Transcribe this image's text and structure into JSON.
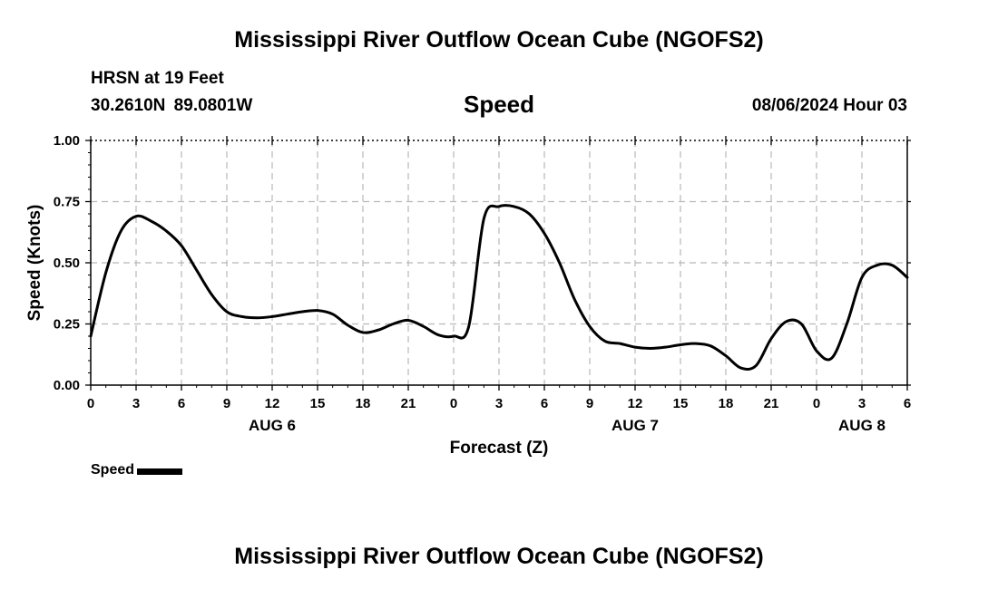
{
  "header": {
    "title": "Mississippi River Outflow Ocean Cube (NGOFS2)",
    "station": "HRSN at 19 Feet",
    "coords": "30.2610N  89.0801W",
    "variable": "Speed",
    "datetime": "08/06/2024 Hour 03"
  },
  "footer": {
    "title": "Mississippi River Outflow Ocean Cube (NGOFS2)"
  },
  "legend": {
    "label": "Speed",
    "color": "#000000"
  },
  "chart_data": {
    "type": "line",
    "title": "Speed",
    "xlabel": "Forecast (Z)",
    "ylabel": "Speed (Knots)",
    "xlim": [
      0,
      54
    ],
    "ylim": [
      0,
      1.0
    ],
    "grid": true,
    "x_ticks": [
      0,
      3,
      6,
      9,
      12,
      15,
      18,
      21,
      24,
      27,
      30,
      33,
      36,
      39,
      42,
      45,
      48,
      51,
      54
    ],
    "x_tick_labels": [
      "0",
      "3",
      "6",
      "9",
      "12",
      "15",
      "18",
      "21",
      "0",
      "3",
      "6",
      "9",
      "12",
      "15",
      "18",
      "21",
      "0",
      "3",
      "6"
    ],
    "y_ticks": [
      0,
      0.25,
      0.5,
      0.75,
      1.0
    ],
    "y_tick_labels": [
      "0.00",
      "0.25",
      "0.50",
      "0.75",
      "1.00"
    ],
    "date_labels": [
      {
        "x": 12,
        "label": "AUG 6"
      },
      {
        "x": 36,
        "label": "AUG 7"
      },
      {
        "x": 51,
        "label": "AUG 8"
      }
    ],
    "series": [
      {
        "name": "Speed",
        "color": "#000000",
        "x": [
          0,
          1,
          2,
          3,
          4,
          5,
          6,
          7,
          8,
          9,
          10,
          11,
          12,
          13,
          14,
          15,
          16,
          17,
          18,
          19,
          20,
          21,
          22,
          23,
          24,
          25,
          26,
          27,
          28,
          29,
          30,
          31,
          32,
          33,
          34,
          35,
          36,
          37,
          38,
          39,
          40,
          41,
          42,
          43,
          44,
          45,
          46,
          47,
          48,
          49,
          50,
          51,
          52,
          53,
          54
        ],
        "values": [
          0.2,
          0.46,
          0.63,
          0.69,
          0.67,
          0.63,
          0.57,
          0.47,
          0.37,
          0.3,
          0.28,
          0.275,
          0.28,
          0.29,
          0.3,
          0.305,
          0.29,
          0.245,
          0.215,
          0.225,
          0.25,
          0.265,
          0.24,
          0.205,
          0.2,
          0.24,
          0.68,
          0.73,
          0.73,
          0.7,
          0.62,
          0.5,
          0.35,
          0.24,
          0.18,
          0.17,
          0.155,
          0.15,
          0.155,
          0.165,
          0.17,
          0.16,
          0.12,
          0.07,
          0.08,
          0.19,
          0.26,
          0.25,
          0.14,
          0.11,
          0.25,
          0.44,
          0.49,
          0.49,
          0.44
        ]
      }
    ]
  }
}
